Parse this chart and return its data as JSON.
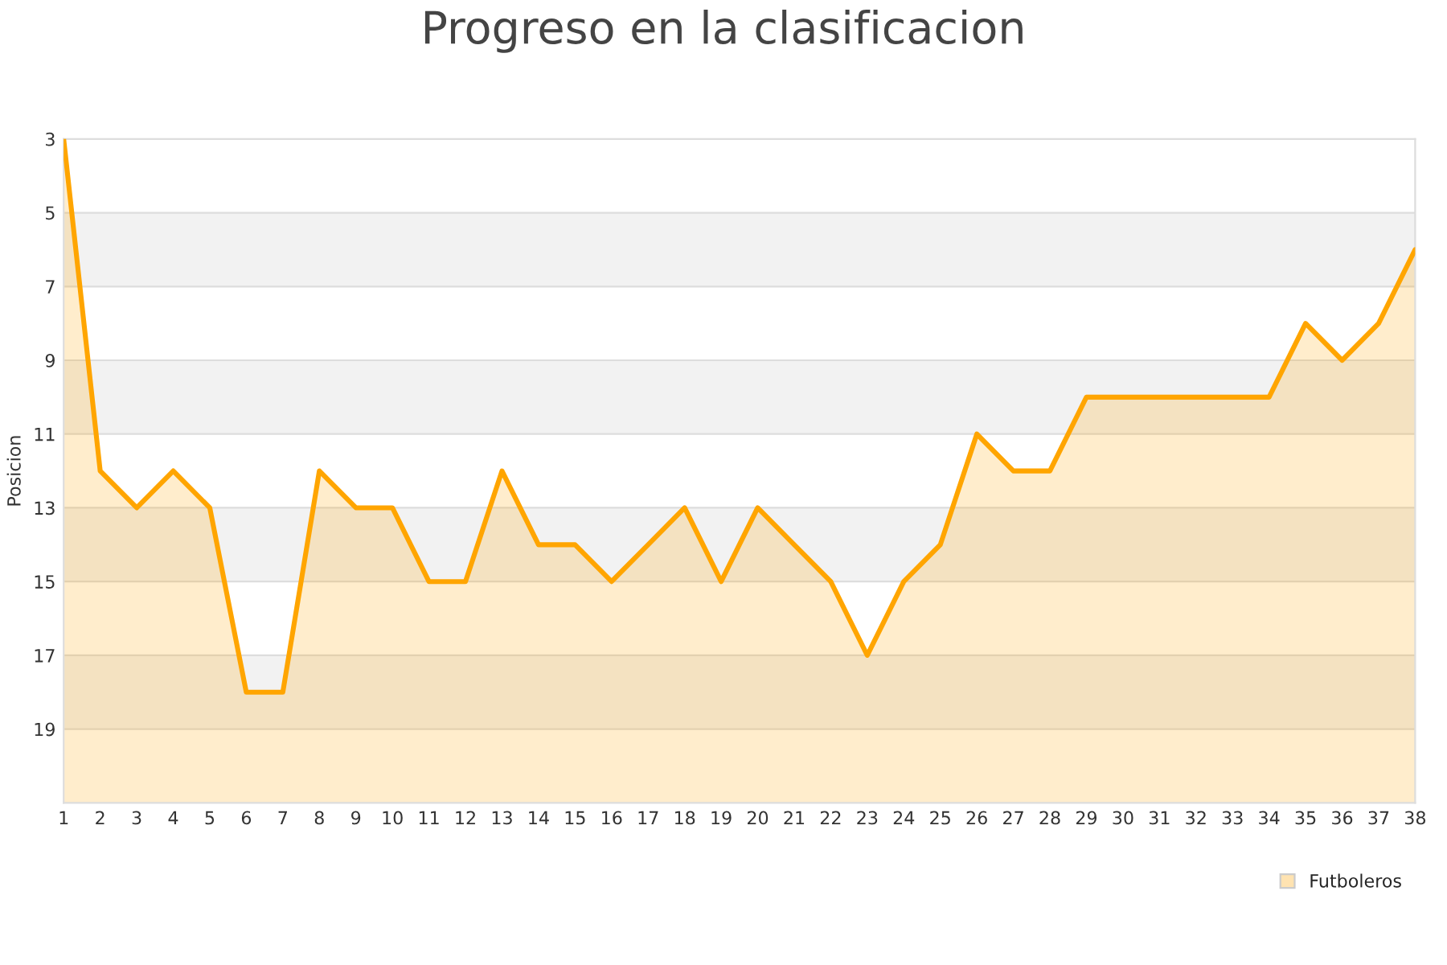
{
  "chart_data": {
    "type": "area",
    "title": "Progreso en la clasificacion",
    "ylabel": "Posicion",
    "x": [
      1,
      2,
      3,
      4,
      5,
      6,
      7,
      8,
      9,
      10,
      11,
      12,
      13,
      14,
      15,
      16,
      17,
      18,
      19,
      20,
      21,
      22,
      23,
      24,
      25,
      26,
      27,
      28,
      29,
      30,
      31,
      32,
      33,
      34,
      35,
      36,
      37,
      38
    ],
    "series": [
      {
        "name": "Futboleros",
        "color": "#ffa500",
        "values": [
          3,
          12,
          13,
          12,
          13,
          18,
          18,
          12,
          13,
          13,
          15,
          15,
          12,
          14,
          14,
          15,
          14,
          13,
          15,
          13,
          14,
          15,
          17,
          15,
          14,
          11,
          12,
          12,
          10,
          10,
          10,
          10,
          10,
          10,
          8,
          9,
          8,
          6
        ]
      }
    ],
    "xlim": [
      1,
      38
    ],
    "xticks": [
      1,
      2,
      3,
      4,
      5,
      6,
      7,
      8,
      9,
      10,
      11,
      12,
      13,
      14,
      15,
      16,
      17,
      18,
      19,
      20,
      21,
      22,
      23,
      24,
      25,
      26,
      27,
      28,
      29,
      30,
      31,
      32,
      33,
      34,
      35,
      36,
      37,
      38
    ],
    "ylim": [
      21,
      3
    ],
    "yticks": [
      3,
      5,
      7,
      9,
      11,
      13,
      15,
      17,
      19
    ],
    "bands": [
      {
        "axis": "y",
        "from": 5,
        "to": 7,
        "color": "#f2f2f2"
      },
      {
        "axis": "y",
        "from": 9,
        "to": 11,
        "color": "#f2f2f2"
      },
      {
        "axis": "y",
        "from": 13,
        "to": 15,
        "color": "#f2f2f2"
      },
      {
        "axis": "y",
        "from": 17,
        "to": 19,
        "color": "#f2f2f2"
      }
    ],
    "grid": "y",
    "legend": "bottom right",
    "line_style": "solid",
    "marker": "none"
  }
}
